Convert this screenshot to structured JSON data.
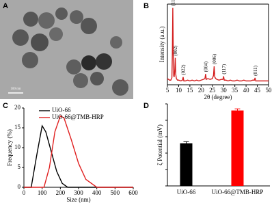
{
  "chart_data": [
    {
      "type": "image",
      "panel_label": "A",
      "scale_bar": "100 nm"
    },
    {
      "type": "line",
      "panel_label": "B",
      "xlabel": "2θ (degree)",
      "ylabel": "Intensity (a.u.)",
      "xlim": [
        5,
        50
      ],
      "xticks": [
        5,
        10,
        15,
        20,
        25,
        30,
        35,
        40,
        45,
        50
      ],
      "ylim": [
        0,
        105
      ],
      "series": [
        {
          "color": "#d42020",
          "x": [
            5,
            5.5,
            6,
            6.5,
            7,
            7.2,
            7.4,
            7.6,
            7.8,
            8,
            8.3,
            8.5,
            8.7,
            9,
            9.5,
            10,
            11,
            11.7,
            12,
            12.3,
            13,
            14,
            15,
            16,
            17,
            18,
            19,
            20,
            21,
            21.7,
            22,
            22.3,
            23,
            24,
            25,
            25.5,
            25.8,
            26.1,
            26.5,
            27,
            28,
            29,
            29.7,
            30,
            30.3,
            31,
            32,
            33,
            34,
            35,
            36,
            37,
            38,
            39,
            40,
            41,
            42,
            43,
            43.7,
            44,
            44.3,
            45,
            46,
            47,
            48,
            49,
            50
          ],
          "values": [
            8,
            7,
            6,
            6,
            9,
            40,
            100,
            45,
            12,
            10,
            20,
            35,
            14,
            8,
            6,
            6,
            5,
            6,
            10,
            5,
            5,
            6,
            5,
            6,
            5,
            6,
            5,
            6,
            7,
            8,
            14,
            7,
            8,
            7,
            8,
            12,
            24,
            10,
            8,
            7,
            6,
            7,
            7,
            11,
            6,
            6,
            5,
            6,
            5,
            5,
            6,
            5,
            5,
            6,
            5,
            5,
            5,
            6,
            6,
            9,
            5,
            5,
            5,
            5,
            5,
            5,
            5
          ]
        }
      ],
      "annotations": [
        {
          "text": "(111)",
          "x": 7.4,
          "y": 100
        },
        {
          "text": "(002)",
          "x": 8.5,
          "y": 35
        },
        {
          "text": "(022)",
          "x": 12,
          "y": 10
        },
        {
          "text": "(004)",
          "x": 22,
          "y": 14
        },
        {
          "text": "(006)",
          "x": 25.8,
          "y": 24
        },
        {
          "text": "(117)",
          "x": 30,
          "y": 11
        },
        {
          "text": "(011)",
          "x": 44,
          "y": 9
        }
      ]
    },
    {
      "type": "line",
      "panel_label": "C",
      "xlabel": "Size (nm)",
      "ylabel": "Frequency (%)",
      "xlim": [
        0,
        600
      ],
      "xticks": [
        0,
        100,
        200,
        300,
        400,
        500,
        600
      ],
      "ylim": [
        0,
        20
      ],
      "yticks": [
        0,
        5,
        10,
        15,
        20
      ],
      "series": [
        {
          "name": "UiO-66",
          "color": "#000000",
          "x": [
            0,
            40,
            70,
            100,
            120,
            150,
            180,
            210,
            240,
            600
          ],
          "values": [
            0,
            0,
            8,
            15.5,
            14,
            9,
            4,
            1,
            0,
            0
          ]
        },
        {
          "name": "UiO-66@TMB-HRP",
          "color": "#e02020",
          "x": [
            0,
            110,
            140,
            170,
            200,
            220,
            260,
            300,
            340,
            400,
            600
          ],
          "values": [
            0,
            0,
            5,
            14,
            18,
            17.5,
            12,
            6,
            2,
            0,
            0
          ]
        }
      ]
    },
    {
      "type": "bar",
      "panel_label": "D",
      "ylabel": "ζ Potential (mV)",
      "categories": [
        "UiO-66",
        "UiO-66@TMB-HRP"
      ],
      "values": [
        26,
        46
      ],
      "errors": [
        1,
        1
      ],
      "colors": [
        "#000000",
        "#ff0000"
      ],
      "ylim": [
        0,
        50
      ],
      "yticks": [
        0,
        10,
        20,
        30,
        40,
        50
      ]
    }
  ]
}
